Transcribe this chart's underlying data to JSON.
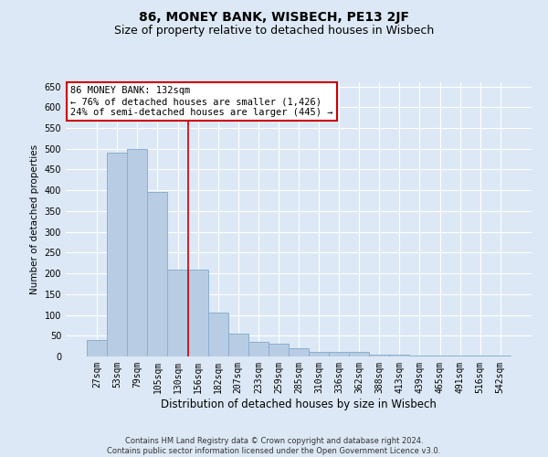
{
  "title": "86, MONEY BANK, WISBECH, PE13 2JF",
  "subtitle": "Size of property relative to detached houses in Wisbech",
  "xlabel": "Distribution of detached houses by size in Wisbech",
  "ylabel": "Number of detached properties",
  "footer_line1": "Contains HM Land Registry data © Crown copyright and database right 2024.",
  "footer_line2": "Contains public sector information licensed under the Open Government Licence v3.0.",
  "categories": [
    "27sqm",
    "53sqm",
    "79sqm",
    "105sqm",
    "130sqm",
    "156sqm",
    "182sqm",
    "207sqm",
    "233sqm",
    "259sqm",
    "285sqm",
    "310sqm",
    "336sqm",
    "362sqm",
    "388sqm",
    "413sqm",
    "439sqm",
    "465sqm",
    "491sqm",
    "516sqm",
    "542sqm"
  ],
  "values": [
    40,
    490,
    500,
    395,
    210,
    210,
    105,
    55,
    35,
    30,
    20,
    10,
    10,
    10,
    5,
    5,
    2,
    2,
    2,
    2,
    2
  ],
  "bar_color": "#b8cce4",
  "bar_edgecolor": "#8ab0d0",
  "bar_linewidth": 0.7,
  "vline_x": 4.5,
  "vline_color": "#cc0000",
  "vline_linewidth": 1.2,
  "annotation_text": "86 MONEY BANK: 132sqm\n← 76% of detached houses are smaller (1,426)\n24% of semi-detached houses are larger (445) →",
  "annotation_box_color": "#ffffff",
  "annotation_box_edgecolor": "#cc0000",
  "ylim": [
    0,
    660
  ],
  "yticks": [
    0,
    50,
    100,
    150,
    200,
    250,
    300,
    350,
    400,
    450,
    500,
    550,
    600,
    650
  ],
  "bg_color": "#dce8f5",
  "plot_bg_color": "#dce8f5",
  "grid_color": "#ffffff",
  "title_fontsize": 10,
  "subtitle_fontsize": 9,
  "tick_fontsize": 7,
  "xlabel_fontsize": 8.5,
  "ylabel_fontsize": 7.5,
  "annot_fontsize": 7.5
}
